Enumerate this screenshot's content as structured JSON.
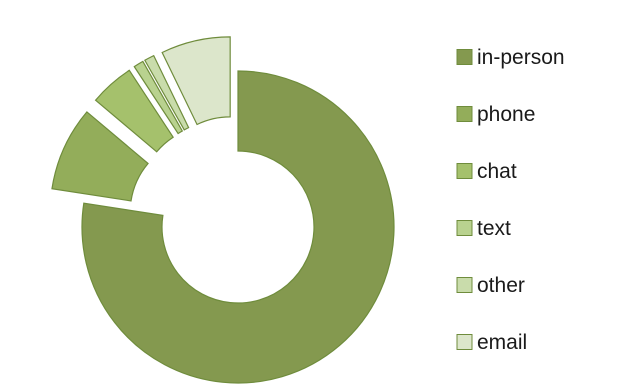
{
  "chart_data": {
    "type": "pie",
    "style": "exploded-donut",
    "legend_position": "right",
    "categories": [
      "in-person",
      "phone",
      "chat",
      "text",
      "other",
      "email"
    ],
    "values": [
      75.5,
      8.5,
      4.5,
      1.0,
      1.0,
      7.0
    ],
    "explode": [
      0,
      1,
      1,
      1,
      1,
      1
    ],
    "colors": [
      "#84994f",
      "#93ad5a",
      "#a5c16c",
      "#b9d28f",
      "#c9dcab",
      "#dce6cb"
    ],
    "stroke_color": "#6f8c3c"
  }
}
